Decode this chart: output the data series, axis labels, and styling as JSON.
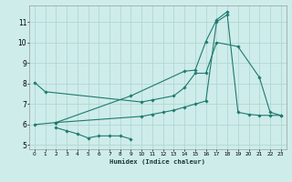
{
  "background_color": "#ceecea",
  "grid_color": "#aad4d0",
  "line_color": "#1e7a6e",
  "xlabel": "Humidex (Indice chaleur)",
  "xlim": [
    -0.5,
    23.5
  ],
  "ylim": [
    4.8,
    11.8
  ],
  "xticks": [
    0,
    1,
    2,
    3,
    4,
    5,
    6,
    7,
    8,
    9,
    10,
    11,
    12,
    13,
    14,
    15,
    16,
    17,
    18,
    19,
    20,
    21,
    22,
    23
  ],
  "yticks": [
    5,
    6,
    7,
    8,
    9,
    10,
    11
  ],
  "curve1_x": [
    0,
    1,
    10,
    11,
    13,
    14,
    15,
    16,
    17,
    19,
    21,
    22,
    23
  ],
  "curve1_y": [
    8.05,
    7.6,
    7.1,
    7.2,
    7.4,
    7.8,
    8.5,
    8.5,
    10.0,
    9.8,
    8.3,
    6.6,
    6.45
  ],
  "curve2_x": [
    2,
    3,
    4,
    5,
    6,
    7,
    8,
    9
  ],
  "curve2_y": [
    5.85,
    5.7,
    5.55,
    5.35,
    5.45,
    5.45,
    5.45,
    5.3
  ],
  "curve3_x": [
    0,
    2,
    10,
    11,
    12,
    13,
    14,
    15,
    16,
    17,
    18,
    19,
    20,
    21,
    22,
    23
  ],
  "curve3_y": [
    6.0,
    6.1,
    6.4,
    6.5,
    6.6,
    6.7,
    6.85,
    7.0,
    7.15,
    11.0,
    11.35,
    6.6,
    6.5,
    6.45,
    6.45,
    6.45
  ],
  "curve4_x": [
    2,
    9,
    14,
    15,
    16,
    17,
    18
  ],
  "curve4_y": [
    6.1,
    7.4,
    8.6,
    8.65,
    10.05,
    11.1,
    11.5
  ]
}
